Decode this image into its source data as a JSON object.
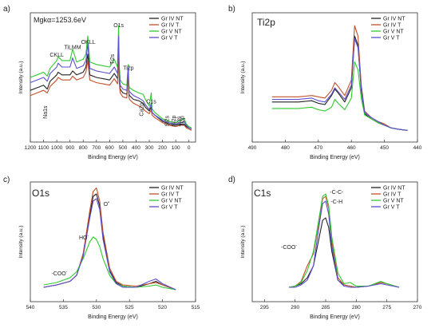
{
  "series_colors": [
    "#222222",
    "#c2502a",
    "#2fc92f",
    "#5a4fd0"
  ],
  "chart_data": [
    {
      "type": "line",
      "panel_label": "a)",
      "title": "",
      "inset_text": "Mgkα=1253.6eV",
      "xlabel": "Binding Energy (eV)",
      "ylabel": "Intensity (a.u.)",
      "xlim": [
        1200,
        -50
      ],
      "ylim": [
        0,
        100
      ],
      "xticks": [
        1200,
        1100,
        1000,
        900,
        800,
        700,
        600,
        500,
        400,
        300,
        200,
        100,
        0
      ],
      "legend": [
        "Gr IV NT",
        "Gr IV T",
        "Gr V NT",
        "Gr V T"
      ],
      "legend_position": "top-right",
      "annotations": [
        {
          "text": "Na1s",
          "x": 1072,
          "y": 18,
          "rotate": true
        },
        {
          "text": "CKLL",
          "x": 1000,
          "y": 66
        },
        {
          "text": "TiLMM",
          "x": 880,
          "y": 72
        },
        {
          "text": "OKLL",
          "x": 762,
          "y": 76
        },
        {
          "text": "Ti2s",
          "x": 565,
          "y": 60,
          "rotate": true
        },
        {
          "text": "O1s",
          "x": 532,
          "y": 89
        },
        {
          "text": "Ti2p",
          "x": 458,
          "y": 56
        },
        {
          "text": "Ca2p",
          "x": 347,
          "y": 20,
          "rotate": true
        },
        {
          "text": "C1s",
          "x": 285,
          "y": 30
        },
        {
          "text": "Si2s",
          "x": 152,
          "y": 12,
          "rotate": true
        },
        {
          "text": "Si2p",
          "x": 102,
          "y": 12,
          "rotate": true
        },
        {
          "text": "Ti3s",
          "x": 62,
          "y": 12,
          "rotate": true
        },
        {
          "text": "Ti3p",
          "x": 36,
          "y": 12,
          "rotate": true
        }
      ],
      "x": [
        1200,
        1150,
        1100,
        1072,
        1050,
        1000,
        990,
        960,
        900,
        880,
        850,
        800,
        780,
        765,
        750,
        700,
        650,
        600,
        565,
        540,
        532,
        528,
        520,
        500,
        470,
        459,
        455,
        450,
        420,
        380,
        347,
        330,
        300,
        285,
        280,
        260,
        200,
        152,
        102,
        62,
        36,
        20,
        0,
        -20
      ],
      "series": [
        {
          "name": "Gr IV NT",
          "values": [
            40,
            42,
            44,
            41,
            47,
            52,
            54,
            52,
            52,
            55,
            52,
            54,
            58,
            68,
            52,
            50,
            49,
            48,
            53,
            49,
            74,
            51,
            41,
            38,
            37,
            55,
            38,
            36,
            33,
            32,
            30,
            27,
            24,
            27,
            23,
            21,
            16,
            14,
            13,
            14,
            14,
            12,
            11,
            10
          ]
        },
        {
          "name": "Gr IV T",
          "values": [
            36,
            38,
            40,
            38,
            43,
            48,
            50,
            48,
            48,
            51,
            48,
            50,
            54,
            63,
            48,
            46,
            45,
            44,
            49,
            45,
            72,
            47,
            38,
            35,
            34,
            53,
            35,
            33,
            30,
            28,
            26,
            24,
            22,
            25,
            21,
            19,
            15,
            13,
            12,
            13,
            13,
            11,
            10,
            9
          ]
        },
        {
          "name": "Gr V NT",
          "values": [
            50,
            52,
            54,
            51,
            57,
            63,
            66,
            63,
            63,
            72,
            62,
            64,
            68,
            82,
            62,
            60,
            59,
            58,
            64,
            58,
            90,
            60,
            48,
            45,
            44,
            60,
            44,
            42,
            40,
            38,
            37,
            33,
            28,
            38,
            26,
            23,
            18,
            16,
            15,
            17,
            18,
            14,
            12,
            11
          ]
        },
        {
          "name": "Gr V T",
          "values": [
            46,
            48,
            50,
            47,
            53,
            58,
            61,
            58,
            58,
            65,
            57,
            59,
            63,
            76,
            57,
            55,
            54,
            53,
            58,
            53,
            82,
            55,
            44,
            41,
            40,
            58,
            41,
            39,
            36,
            34,
            32,
            29,
            25,
            30,
            23,
            21,
            17,
            15,
            14,
            15,
            16,
            13,
            11,
            10
          ]
        }
      ]
    },
    {
      "type": "line",
      "panel_label": "b)",
      "title": "Ti2p",
      "xlabel": "Binding Energy (eV)",
      "ylabel": "Intensity (a.u.)",
      "xlim": [
        490,
        440
      ],
      "ylim": [
        0,
        100
      ],
      "xticks": [
        490,
        480,
        470,
        460,
        450,
        440
      ],
      "legend": [
        "Gr IV NT",
        "Gr IV T",
        "Gr V NT",
        "Gr V T"
      ],
      "legend_position": "top-right",
      "x": [
        484,
        480,
        476,
        472,
        470,
        468,
        466,
        465,
        464,
        462,
        460,
        459,
        458,
        457,
        456,
        454,
        452,
        450,
        448,
        446,
        443
      ],
      "series": [
        {
          "name": "Gr IV NT",
          "values": [
            31,
            31,
            31,
            32,
            30,
            29,
            36,
            41,
            38,
            31,
            42,
            82,
            75,
            40,
            22,
            18,
            15,
            13,
            11,
            10,
            9
          ]
        },
        {
          "name": "Gr IV T",
          "values": [
            35,
            35,
            35,
            36,
            35,
            34,
            40,
            46,
            43,
            36,
            48,
            90,
            82,
            44,
            24,
            19,
            16,
            14,
            11,
            10,
            9
          ]
        },
        {
          "name": "Gr V NT",
          "values": [
            26,
            26,
            26,
            27,
            25,
            24,
            27,
            33,
            30,
            25,
            34,
            62,
            56,
            34,
            21,
            18,
            15,
            13,
            11,
            10,
            9
          ]
        },
        {
          "name": "Gr V T",
          "values": [
            33,
            33,
            33,
            34,
            32,
            31,
            37,
            42,
            39,
            33,
            44,
            80,
            73,
            42,
            23,
            19,
            16,
            13,
            11,
            10,
            9
          ]
        }
      ]
    },
    {
      "type": "line",
      "panel_label": "c)",
      "title": "O1s",
      "xlabel": "Binding Energy (eV)",
      "ylabel": "Intensity (a.u.)",
      "xlim": [
        540,
        515
      ],
      "ylim": [
        0,
        100
      ],
      "xticks": [
        540,
        535,
        530,
        525,
        520,
        515
      ],
      "legend": [
        "Gr IV NT",
        "Gr IV T",
        "Gr V NT",
        "Gr V T"
      ],
      "legend_position": "top-right",
      "annotations": [
        {
          "text": "O",
          "sup": "•",
          "x": 528.5,
          "y": 80
        },
        {
          "text": "HO",
          "sup": "-",
          "x": 531.9,
          "y": 52
        },
        {
          "text": "-COO",
          "sup": "-",
          "x": 535.6,
          "y": 22
        }
      ],
      "x": [
        538,
        536,
        534,
        533,
        532,
        531,
        530.5,
        530,
        529.5,
        529,
        528,
        527,
        526,
        524,
        522,
        521,
        520,
        518
      ],
      "series": [
        {
          "name": "Gr IV NT",
          "values": [
            12,
            14,
            17,
            22,
            40,
            72,
            88,
            90,
            80,
            55,
            26,
            16,
            13,
            12,
            15,
            17,
            14,
            10
          ]
        },
        {
          "name": "Gr IV T",
          "values": [
            12,
            14,
            17,
            22,
            40,
            76,
            92,
            95,
            84,
            58,
            28,
            17,
            14,
            13,
            15,
            16,
            14,
            10
          ]
        },
        {
          "name": "Gr V NT",
          "values": [
            14,
            16,
            20,
            25,
            36,
            50,
            54,
            52,
            46,
            36,
            22,
            15,
            13,
            12,
            13,
            14,
            12,
            10
          ]
        },
        {
          "name": "Gr V T",
          "values": [
            12,
            14,
            17,
            22,
            38,
            70,
            84,
            86,
            77,
            52,
            25,
            15,
            12,
            12,
            17,
            19,
            15,
            10
          ]
        }
      ]
    },
    {
      "type": "line",
      "panel_label": "d)",
      "title": "C1s",
      "xlabel": "Binding Energy (eV)",
      "ylabel": "Intensity (a.u.)",
      "xlim": [
        297,
        270
      ],
      "ylim": [
        0,
        100
      ],
      "xticks": [
        295,
        290,
        285,
        280,
        275,
        270
      ],
      "legend": [
        "Gr IV NT",
        "Gr IV T",
        "Gr V NT",
        "Gr V T"
      ],
      "legend_position": "top-right",
      "annotations": [
        {
          "text": "-C-C-",
          "x": 283.2,
          "y": 90
        },
        {
          "text": "-C-H",
          "x": 283.2,
          "y": 82
        },
        {
          "text": "-COO",
          "sup": "-",
          "x": 291,
          "y": 44
        }
      ],
      "x": [
        291,
        290,
        289,
        288,
        287,
        286,
        285.5,
        285,
        284.5,
        284,
        283,
        282,
        281,
        280,
        278,
        276,
        275,
        273
      ],
      "series": [
        {
          "name": "Gr IV NT",
          "values": [
            12,
            13,
            15,
            20,
            30,
            55,
            68,
            70,
            62,
            42,
            18,
            14,
            13,
            12,
            13,
            16,
            15,
            12
          ]
        },
        {
          "name": "Gr IV T",
          "values": [
            12,
            13,
            17,
            30,
            40,
            70,
            86,
            88,
            78,
            50,
            20,
            14,
            13,
            12,
            13,
            16,
            15,
            12
          ]
        },
        {
          "name": "Gr V NT",
          "values": [
            12,
            13,
            16,
            26,
            42,
            72,
            88,
            90,
            80,
            54,
            24,
            15,
            16,
            13,
            13,
            17,
            15,
            12
          ]
        },
        {
          "name": "Gr V T",
          "values": [
            12,
            12,
            14,
            18,
            30,
            66,
            82,
            84,
            73,
            46,
            18,
            13,
            12,
            12,
            13,
            15,
            14,
            12
          ]
        }
      ]
    }
  ]
}
